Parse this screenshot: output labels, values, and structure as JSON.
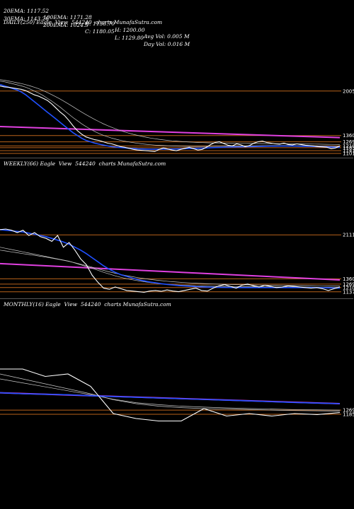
{
  "header": {
    "row1": [
      "20EMA: 1117.52",
      "100EMA: 1171.28",
      "O: 1138.70",
      "H: 1200.00",
      "Avg Vol: 0.005 M"
    ],
    "row2": [
      "30EMA: 1143.26",
      "200EMA: 1024.5",
      "C: 1180.05",
      "L: 1129.80",
      "Day Vol: 0.016 M"
    ]
  },
  "colors": {
    "price": "#ffffff",
    "ema_fast": "#2050ff",
    "ema_slow": "#c9c9c9",
    "trend": "#e040e0",
    "level": "#b8621a",
    "background": "#000000"
  },
  "chart_data": [
    {
      "type": "line",
      "title": "DAILY(250) Eagle  View  544240  charts MunafaSutra.com",
      "ylim": [
        1050,
        2300
      ],
      "levels": [
        {
          "label": "2005",
          "value": 2005
        },
        {
          "label": "1360",
          "value": 1360
        },
        {
          "label": "1269",
          "value": 1269
        },
        {
          "label": "1210",
          "value": 1210
        },
        {
          "label": "1185",
          "value": 1185
        },
        {
          "label": "1141",
          "value": 1141
        },
        {
          "label": "1101",
          "value": 1101
        }
      ],
      "trend": {
        "start": 1490,
        "end": 1330
      },
      "series": [
        {
          "role": "price",
          "values": [
            2080,
            2065,
            2060,
            2050,
            2040,
            2030,
            2010,
            1980,
            1950,
            1930,
            1900,
            1870,
            1820,
            1760,
            1700,
            1650,
            1580,
            1500,
            1430,
            1380,
            1340,
            1320,
            1300,
            1290,
            1270,
            1250,
            1240,
            1220,
            1200,
            1190,
            1175,
            1160,
            1150,
            1145,
            1140,
            1135,
            1130,
            1160,
            1180,
            1165,
            1150,
            1140,
            1160,
            1175,
            1190,
            1170,
            1150,
            1160,
            1190,
            1230,
            1260,
            1270,
            1245,
            1220,
            1210,
            1240,
            1225,
            1200,
            1215,
            1250,
            1270,
            1280,
            1260,
            1250,
            1240,
            1235,
            1250,
            1230,
            1225,
            1240,
            1230,
            1220,
            1215,
            1210,
            1200,
            1195,
            1190,
            1170,
            1180,
            1210
          ]
        },
        {
          "role": "ema_fast",
          "values": [
            2100,
            2080,
            2060,
            2040,
            2020,
            1990,
            1950,
            1900,
            1850,
            1800,
            1750,
            1700,
            1650,
            1600,
            1550,
            1500,
            1450,
            1400,
            1360,
            1320,
            1290,
            1270,
            1250,
            1235,
            1222,
            1210,
            1200,
            1192,
            1186,
            1181,
            1176,
            1172,
            1168,
            1166,
            1164,
            1162,
            1162,
            1163,
            1164,
            1164,
            1165,
            1166,
            1168,
            1170,
            1172,
            1174,
            1176,
            1178,
            1180,
            1183,
            1186,
            1189,
            1191,
            1193,
            1194,
            1196,
            1197,
            1198,
            1199,
            1201,
            1203,
            1205,
            1206,
            1207,
            1207,
            1208,
            1208,
            1208,
            1208,
            1207,
            1206,
            1205,
            1204,
            1202,
            1200,
            1198,
            1195,
            1192,
            1190,
            1190
          ]
        },
        {
          "role": "ema_slow",
          "values": [
            2150,
            2140,
            2125,
            2110,
            2095,
            2080,
            2060,
            2035,
            2005,
            1975,
            1940,
            1900,
            1860,
            1815,
            1770,
            1720,
            1670,
            1620,
            1575,
            1530,
            1490,
            1455,
            1420,
            1390,
            1365,
            1343,
            1323,
            1306,
            1291,
            1278,
            1267,
            1257,
            1248,
            1240,
            1233,
            1227,
            1222,
            1218,
            1215,
            1212,
            1210,
            1208,
            1206,
            1205,
            1204,
            1203,
            1203,
            1203,
            1203,
            1204,
            1205,
            1206,
            1207,
            1208,
            1208,
            1209,
            1209,
            1210,
            1210,
            1211,
            1212,
            1213,
            1213,
            1214,
            1214,
            1214,
            1214,
            1214,
            1214,
            1213,
            1213,
            1212,
            1211,
            1210,
            1209,
            1208,
            1206,
            1204,
            1203,
            1202
          ]
        },
        {
          "role": "ema_slow",
          "values": [
            2170,
            2162,
            2150,
            2138,
            2125,
            2112,
            2097,
            2080,
            2060,
            2038,
            2012,
            1984,
            1954,
            1922,
            1888,
            1852,
            1815,
            1776,
            1738,
            1700,
            1663,
            1628,
            1594,
            1562,
            1532,
            1504,
            1478,
            1454,
            1432,
            1412,
            1394,
            1377,
            1362,
            1348,
            1336,
            1324,
            1314,
            1305,
            1297,
            1290,
            1284,
            1279,
            1274,
            1270,
            1266,
            1263,
            1260,
            1258,
            1256,
            1254,
            1253,
            1252,
            1251,
            1250,
            1249,
            1248,
            1247,
            1247,
            1246,
            1245,
            1245,
            1244,
            1244,
            1243,
            1243,
            1242,
            1242,
            1241,
            1240,
            1240,
            1239,
            1238,
            1237,
            1236,
            1235,
            1234,
            1233,
            1232,
            1231,
            1230
          ]
        }
      ]
    },
    {
      "type": "line",
      "title": "WEEKLY(66) Eagle  View  544240  charts MunafaSutra.com",
      "ylim": [
        1050,
        2500
      ],
      "levels": [
        {
          "label": "2111",
          "value": 2111
        },
        {
          "label": "1360",
          "value": 1360
        },
        {
          "label": "1269",
          "value": 1269
        },
        {
          "label": "1210",
          "value": 1210
        },
        {
          "label": "1137",
          "value": 1137
        }
      ],
      "trend": {
        "start": 1620,
        "end": 1340
      },
      "series": [
        {
          "role": "price",
          "values": [
            2200,
            2210,
            2190,
            2150,
            2190,
            2100,
            2150,
            2080,
            2050,
            2000,
            2100,
            1900,
            1980,
            1850,
            1700,
            1600,
            1420,
            1300,
            1200,
            1180,
            1220,
            1190,
            1160,
            1150,
            1140,
            1130,
            1150,
            1160,
            1145,
            1170,
            1150,
            1140,
            1160,
            1180,
            1200,
            1160,
            1150,
            1200,
            1240,
            1260,
            1230,
            1200,
            1250,
            1270,
            1240,
            1220,
            1250,
            1230,
            1210,
            1220,
            1240,
            1230,
            1220,
            1210,
            1200,
            1210,
            1190,
            1160,
            1190,
            1220
          ]
        },
        {
          "role": "ema_fast",
          "values": [
            2200,
            2190,
            2180,
            2170,
            2160,
            2140,
            2120,
            2100,
            2080,
            2050,
            2020,
            1990,
            1950,
            1900,
            1850,
            1790,
            1720,
            1650,
            1580,
            1520,
            1470,
            1430,
            1400,
            1370,
            1345,
            1325,
            1305,
            1290,
            1276,
            1264,
            1254,
            1245,
            1238,
            1232,
            1227,
            1222,
            1218,
            1215,
            1213,
            1212,
            1211,
            1210,
            1210,
            1210,
            1210,
            1210,
            1210,
            1210,
            1210,
            1210,
            1210,
            1210,
            1210,
            1210,
            1209,
            1208,
            1207,
            1205,
            1202,
            1200
          ]
        },
        {
          "role": "ema_slow",
          "values": [
            1900,
            1880,
            1860,
            1840,
            1820,
            1800,
            1780,
            1760,
            1740,
            1720,
            1700,
            1680,
            1660,
            1630,
            1600,
            1570,
            1540,
            1505,
            1470,
            1440,
            1410,
            1385,
            1362,
            1342,
            1325,
            1310,
            1297,
            1285,
            1275,
            1266,
            1259,
            1253,
            1248,
            1244,
            1240,
            1237,
            1235,
            1233,
            1231,
            1230,
            1229,
            1228,
            1227,
            1226,
            1225,
            1224,
            1223,
            1222,
            1221,
            1220,
            1220,
            1219,
            1218,
            1218,
            1217,
            1216,
            1215,
            1214,
            1213,
            1212
          ]
        },
        {
          "role": "ema_slow",
          "values": [
            1850,
            1835,
            1820,
            1805,
            1790,
            1775,
            1760,
            1745,
            1730,
            1712,
            1694,
            1676,
            1656,
            1634,
            1610,
            1585,
            1558,
            1530,
            1503,
            1478,
            1455,
            1433,
            1413,
            1395,
            1379,
            1364,
            1351,
            1339,
            1328,
            1318,
            1310,
            1302,
            1295,
            1289,
            1284,
            1279,
            1275,
            1271,
            1268,
            1265,
            1263,
            1260,
            1258,
            1256,
            1254,
            1253,
            1251,
            1250,
            1249,
            1247,
            1246,
            1245,
            1244,
            1243,
            1242,
            1241,
            1240,
            1239,
            1238,
            1237
          ]
        }
      ]
    },
    {
      "type": "line",
      "title": "MONTHLY(16) Eagle  View  544240  charts MunafaSutra.com",
      "ylim": [
        700,
        2700
      ],
      "levels": [
        {
          "label": "1269",
          "value": 1269
        },
        {
          "label": "1185",
          "value": 1185
        }
      ],
      "trend": {
        "start": 1620,
        "end": 1400
      },
      "series": [
        {
          "role": "price",
          "values": [
            2100,
            2100,
            1950,
            2000,
            1750,
            1200,
            1100,
            1050,
            1050,
            1300,
            1150,
            1200,
            1150,
            1200,
            1180,
            1220
          ]
        },
        {
          "role": "ema_fast",
          "values": [
            1620,
            1600,
            1590,
            1580,
            1560,
            1545,
            1530,
            1515,
            1500,
            1485,
            1470,
            1455,
            1440,
            1425,
            1412,
            1400
          ]
        },
        {
          "role": "ema_slow",
          "values": [
            2000,
            1900,
            1800,
            1700,
            1600,
            1480,
            1400,
            1350,
            1320,
            1300,
            1290,
            1280,
            1270,
            1260,
            1255,
            1250
          ]
        },
        {
          "role": "ema_slow",
          "values": [
            1900,
            1820,
            1740,
            1660,
            1580,
            1490,
            1420,
            1380,
            1350,
            1330,
            1315,
            1302,
            1292,
            1282,
            1276,
            1270
          ]
        }
      ]
    }
  ]
}
